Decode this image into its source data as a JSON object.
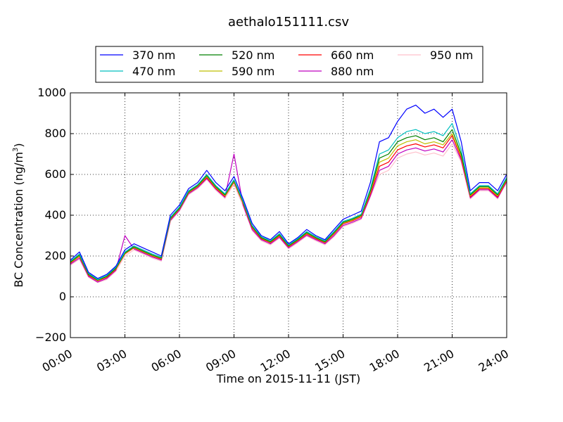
{
  "chart_data": {
    "type": "line",
    "title": "aethalo151111.csv",
    "xlabel": "Time on 2015-11-11 (JST)",
    "ylabel": "BC Concentration (ng/m",
    "ylabel_sup": "3",
    "ylabel_close": ")",
    "xlim": [
      "00:00",
      "24:00"
    ],
    "ylim": [
      -200,
      1000
    ],
    "x_ticks": [
      "00:00",
      "03:00",
      "06:00",
      "09:00",
      "12:00",
      "15:00",
      "18:00",
      "21:00",
      "24:00"
    ],
    "y_ticks": [
      "−200",
      "0",
      "200",
      "400",
      "600",
      "800",
      "1000"
    ],
    "grid": true,
    "legend_position": "top, above plot",
    "x": [
      "00:00",
      "00:30",
      "01:00",
      "01:30",
      "02:00",
      "02:30",
      "03:00",
      "03:30",
      "04:00",
      "04:30",
      "05:00",
      "05:30",
      "06:00",
      "06:30",
      "07:00",
      "07:30",
      "08:00",
      "08:30",
      "09:00",
      "09:30",
      "10:00",
      "10:30",
      "11:00",
      "11:30",
      "12:00",
      "12:30",
      "13:00",
      "13:30",
      "14:00",
      "14:30",
      "15:00",
      "15:30",
      "16:00",
      "16:30",
      "17:00",
      "17:30",
      "18:00",
      "18:30",
      "19:00",
      "19:30",
      "20:00",
      "20:30",
      "21:00",
      "21:30",
      "22:00",
      "22:30",
      "23:00",
      "23:30",
      "24:00"
    ],
    "series": [
      {
        "name": "370 nm",
        "color": "#0000ff",
        "values": [
          180,
          220,
          120,
          90,
          110,
          150,
          230,
          260,
          240,
          220,
          200,
          400,
          450,
          530,
          560,
          620,
          560,
          520,
          590,
          480,
          360,
          300,
          280,
          320,
          260,
          290,
          330,
          300,
          280,
          330,
          380,
          400,
          420,
          560,
          760,
          780,
          860,
          920,
          940,
          900,
          920,
          880,
          920,
          760,
          520,
          560,
          560,
          520,
          600
        ]
      },
      {
        "name": "470 nm",
        "color": "#00bfbf",
        "values": [
          175,
          210,
          115,
          85,
          105,
          145,
          220,
          250,
          230,
          210,
          195,
          390,
          440,
          520,
          550,
          600,
          545,
          505,
          575,
          470,
          350,
          295,
          275,
          310,
          255,
          285,
          320,
          295,
          275,
          320,
          370,
          385,
          405,
          530,
          700,
          720,
          780,
          810,
          820,
          800,
          810,
          790,
          850,
          720,
          505,
          545,
          545,
          505,
          585
        ]
      },
      {
        "name": "520 nm",
        "color": "#008000",
        "values": [
          170,
          205,
          110,
          82,
          100,
          140,
          215,
          245,
          225,
          205,
          190,
          385,
          435,
          515,
          545,
          595,
          540,
          500,
          570,
          465,
          345,
          290,
          270,
          305,
          250,
          280,
          315,
          290,
          270,
          315,
          365,
          380,
          400,
          520,
          680,
          700,
          760,
          780,
          790,
          770,
          780,
          760,
          820,
          700,
          500,
          540,
          540,
          500,
          580
        ]
      },
      {
        "name": "590 nm",
        "color": "#bfbf00",
        "values": [
          168,
          200,
          108,
          80,
          98,
          138,
          212,
          242,
          222,
          202,
          188,
          382,
          432,
          512,
          542,
          590,
          536,
          496,
          566,
          462,
          342,
          288,
          268,
          302,
          248,
          278,
          312,
          288,
          268,
          312,
          362,
          376,
          396,
          512,
          660,
          680,
          740,
          760,
          770,
          750,
          760,
          745,
          800,
          690,
          495,
          535,
          535,
          495,
          575
        ]
      },
      {
        "name": "660 nm",
        "color": "#ff0000",
        "values": [
          165,
          198,
          105,
          78,
          95,
          135,
          210,
          240,
          220,
          200,
          185,
          380,
          430,
          510,
          540,
          585,
          532,
          492,
          562,
          458,
          338,
          285,
          265,
          298,
          245,
          275,
          308,
          285,
          265,
          308,
          358,
          372,
          392,
          505,
          640,
          660,
          720,
          740,
          750,
          735,
          745,
          730,
          790,
          680,
          490,
          530,
          530,
          490,
          570
        ]
      },
      {
        "name": "880 nm",
        "color": "#bf00bf",
        "values": [
          160,
          190,
          100,
          72,
          90,
          130,
          300,
          235,
          215,
          195,
          180,
          375,
          425,
          505,
          535,
          580,
          528,
          488,
          700,
          450,
          330,
          280,
          260,
          292,
          240,
          270,
          302,
          280,
          260,
          300,
          350,
          365,
          385,
          495,
          620,
          640,
          700,
          720,
          730,
          715,
          725,
          710,
          770,
          670,
          485,
          525,
          525,
          485,
          565
        ]
      },
      {
        "name": "950 nm",
        "color": "#ffc0cb",
        "values": [
          155,
          185,
          95,
          70,
          85,
          125,
          200,
          230,
          210,
          190,
          175,
          370,
          420,
          500,
          530,
          575,
          522,
          482,
          552,
          445,
          325,
          275,
          255,
          288,
          235,
          265,
          298,
          275,
          255,
          295,
          345,
          360,
          380,
          490,
          600,
          620,
          680,
          700,
          710,
          695,
          705,
          690,
          750,
          660,
          480,
          520,
          520,
          480,
          560
        ]
      }
    ]
  }
}
